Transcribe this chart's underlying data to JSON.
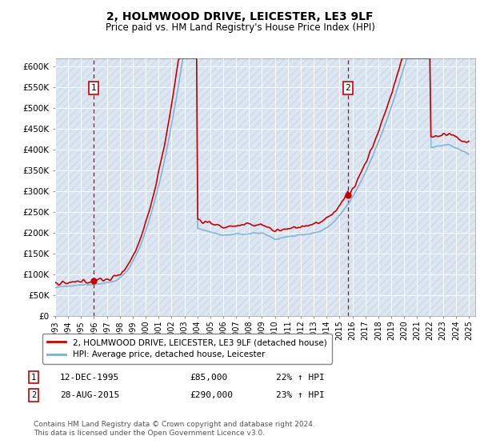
{
  "title": "2, HOLMWOOD DRIVE, LEICESTER, LE3 9LF",
  "subtitle": "Price paid vs. HM Land Registry's House Price Index (HPI)",
  "ylim": [
    0,
    620000
  ],
  "yticks": [
    0,
    50000,
    100000,
    150000,
    200000,
    250000,
    300000,
    350000,
    400000,
    450000,
    500000,
    550000,
    600000
  ],
  "ytick_labels": [
    "£0",
    "£50K",
    "£100K",
    "£150K",
    "£200K",
    "£250K",
    "£300K",
    "£350K",
    "£400K",
    "£450K",
    "£500K",
    "£550K",
    "£600K"
  ],
  "background_color": "#dce6f1",
  "hatch_color": "#c5d5e8",
  "grid_color": "#ffffff",
  "line_color_property": "#cc0000",
  "line_color_hpi": "#7bafd4",
  "purchase1_date": 1995.95,
  "purchase1_price": 85000,
  "purchase2_date": 2015.65,
  "purchase2_price": 290000,
  "legend_label1": "2, HOLMWOOD DRIVE, LEICESTER, LE3 9LF (detached house)",
  "legend_label2": "HPI: Average price, detached house, Leicester",
  "annotation1_label": "1",
  "annotation2_label": "2",
  "footnote1": "12-DEC-1995",
  "footnote1_price": "£85,000",
  "footnote1_hpi": "22% ↑ HPI",
  "footnote2": "28-AUG-2015",
  "footnote2_price": "£290,000",
  "footnote2_hpi": "23% ↑ HPI",
  "copyright": "Contains HM Land Registry data © Crown copyright and database right 2024.\nThis data is licensed under the Open Government Licence v3.0.",
  "xmin": 1993,
  "xmax": 2025.5
}
